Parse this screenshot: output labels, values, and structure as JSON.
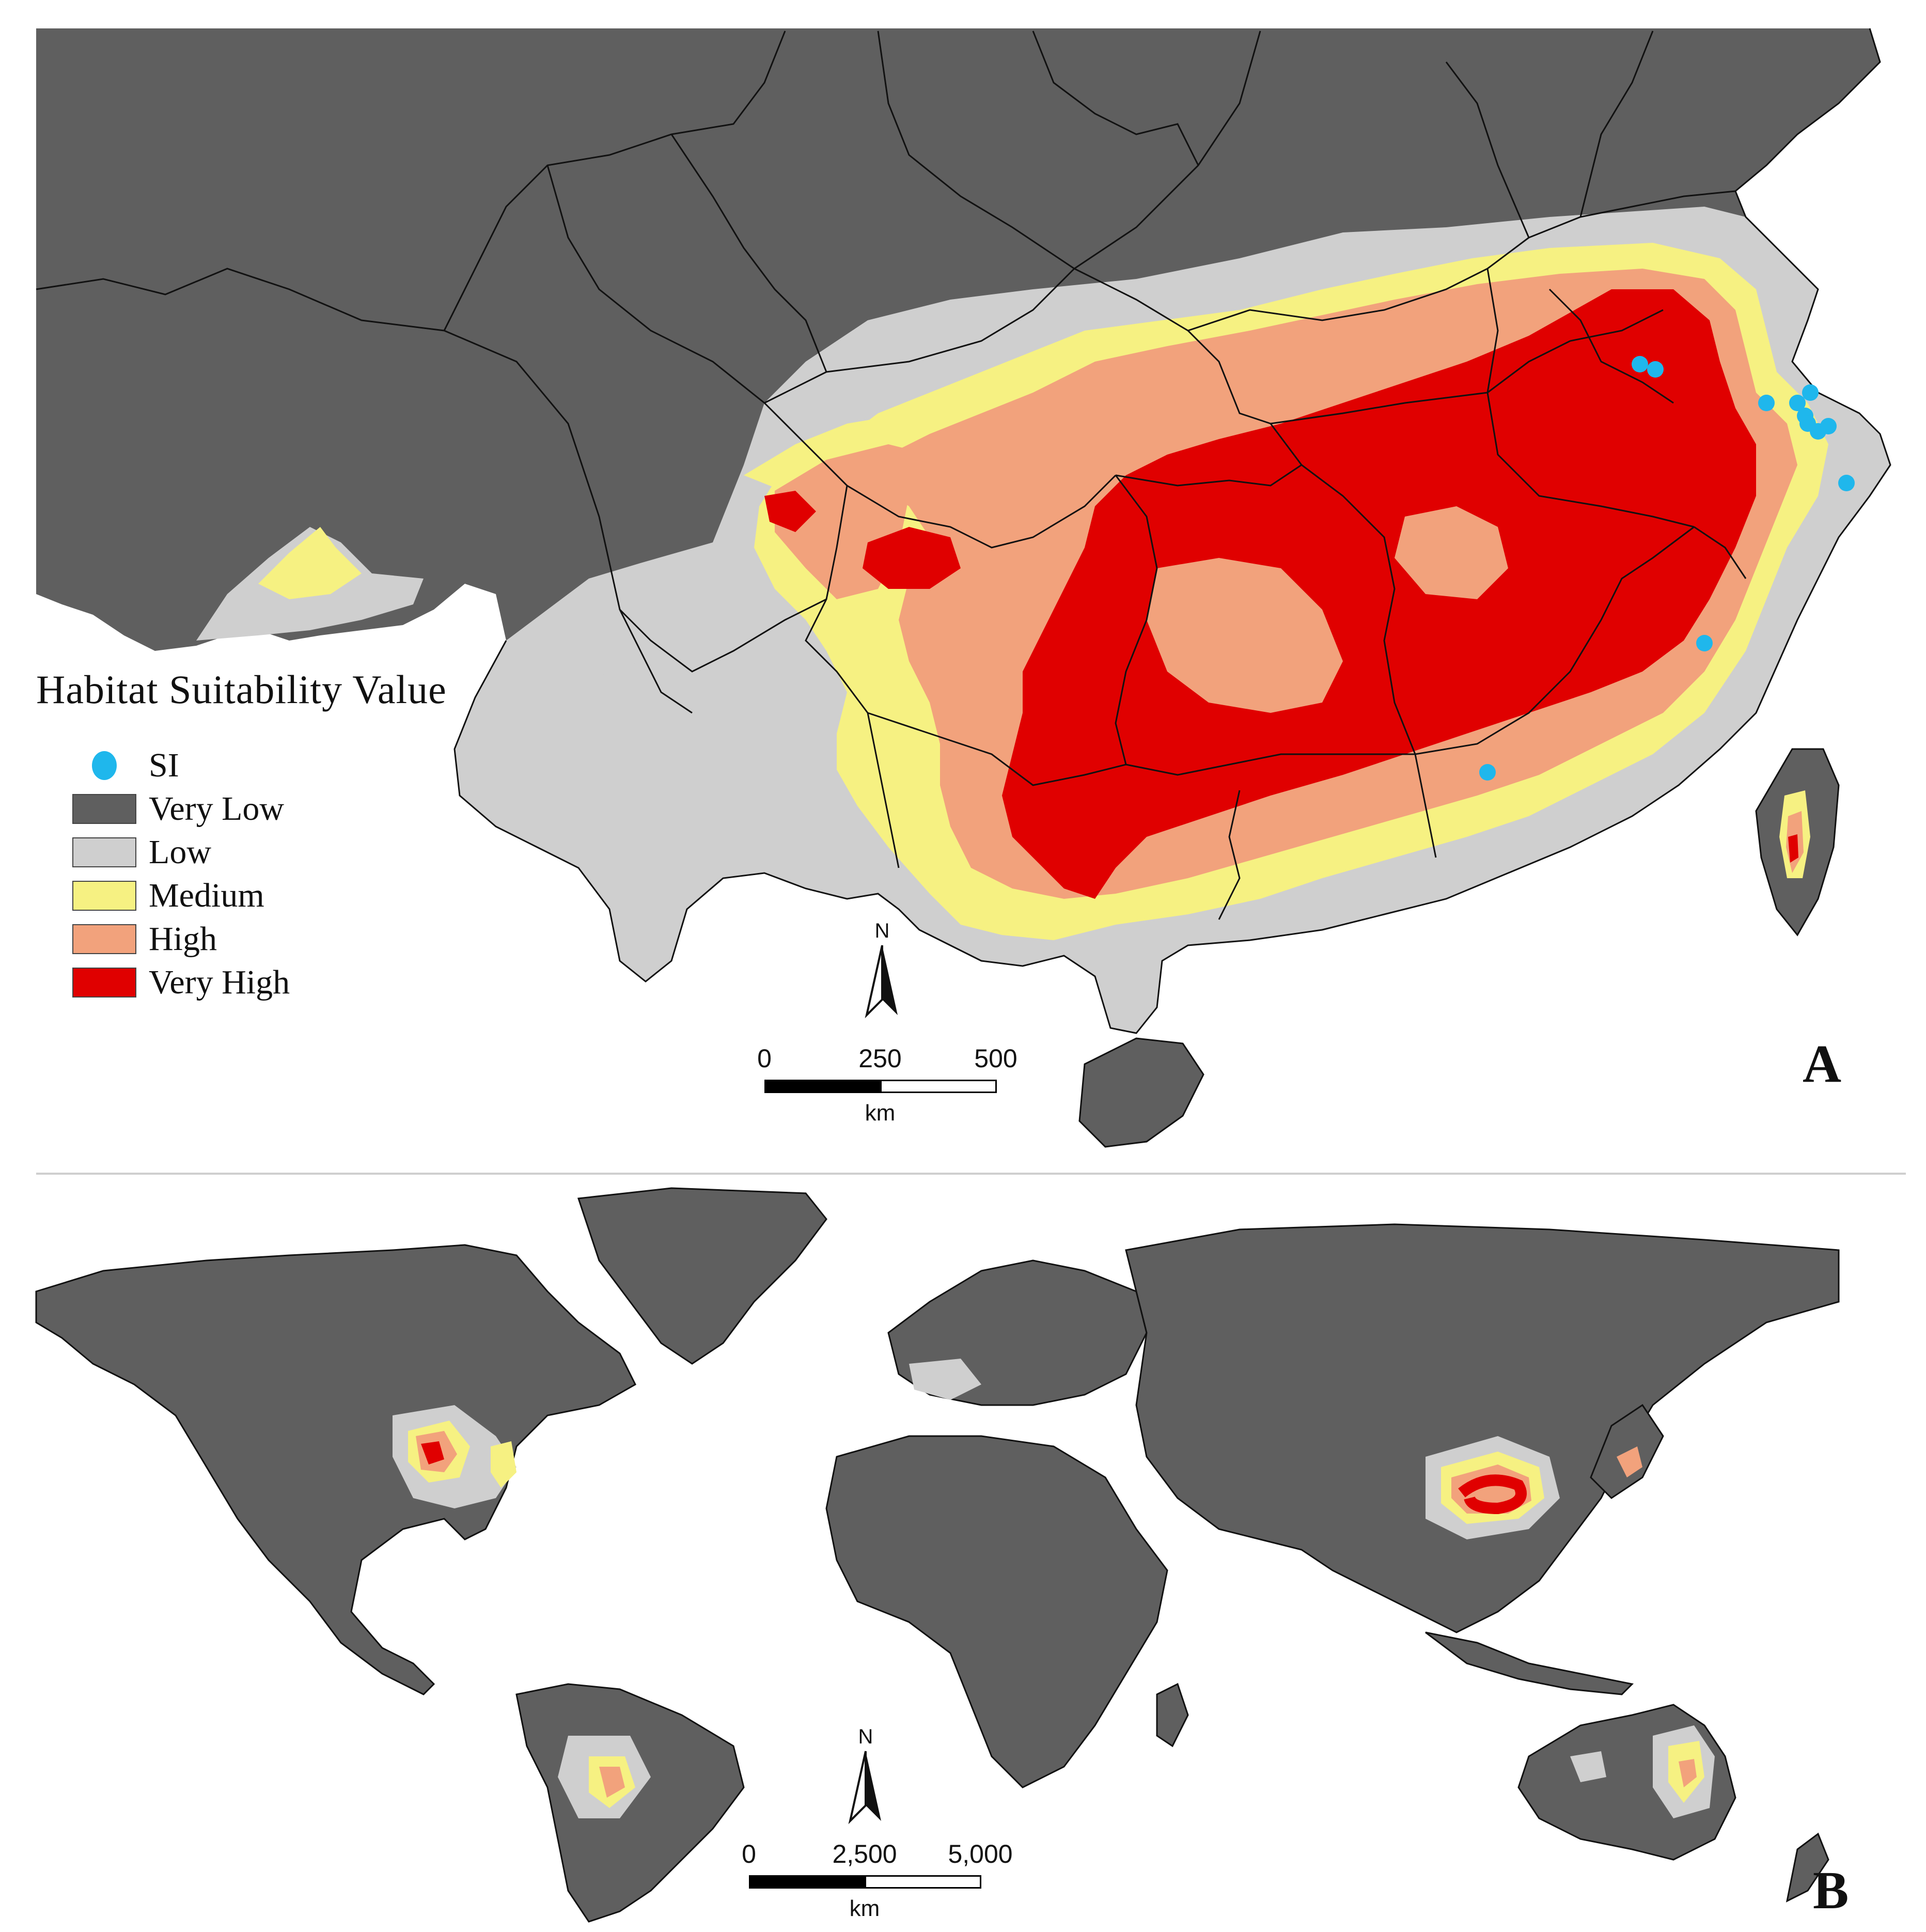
{
  "panel_a": {
    "legend": {
      "title": "Habitat Suitability Value",
      "items": [
        {
          "key": "si",
          "label": "SI",
          "color": "#1fb7ec",
          "kind": "dot"
        },
        {
          "key": "very_low",
          "label": "Very Low",
          "color": "#5f5f5f",
          "kind": "box"
        },
        {
          "key": "low",
          "label": "Low",
          "color": "#cfcfcf",
          "kind": "box"
        },
        {
          "key": "medium",
          "label": "Medium",
          "color": "#f6f182",
          "kind": "box"
        },
        {
          "key": "high",
          "label": "High",
          "color": "#f2a27c",
          "kind": "box"
        },
        {
          "key": "very_high",
          "label": "Very High",
          "color": "#e00000",
          "kind": "box"
        }
      ]
    },
    "north_label": "N",
    "scale": {
      "ticks": [
        "0",
        "250",
        "500"
      ],
      "unit": "km"
    },
    "letter": "A"
  },
  "panel_b": {
    "north_label": "N",
    "scale": {
      "ticks": [
        "0",
        "2,500",
        "5,000"
      ],
      "unit": "km"
    },
    "letter": "B"
  },
  "colors": {
    "very_low": "#5f5f5f",
    "low": "#cfcfcf",
    "medium": "#f6f182",
    "high": "#f2a27c",
    "very_high": "#e00000",
    "si": "#1fb7ec",
    "border": "#111111"
  }
}
